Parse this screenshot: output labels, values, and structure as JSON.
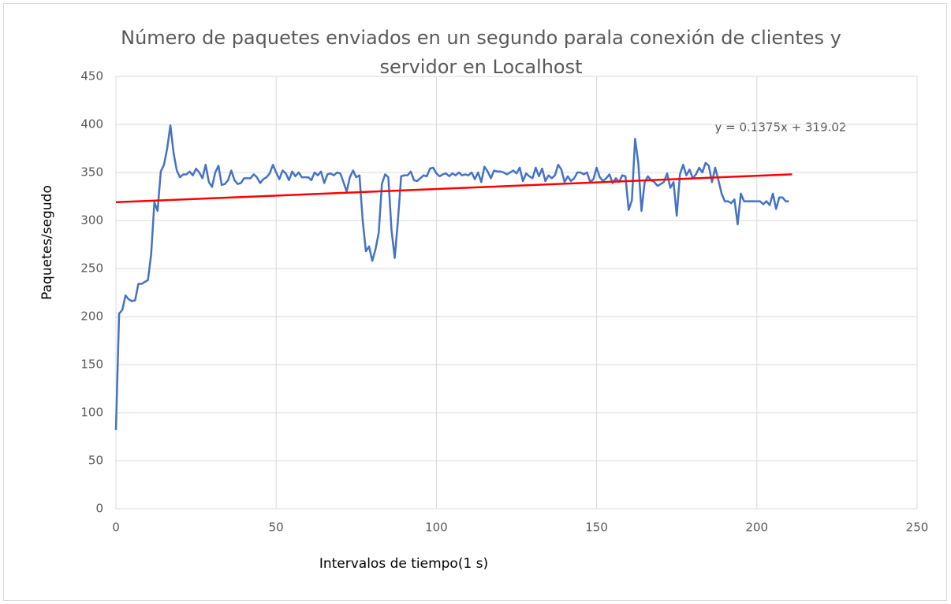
{
  "chart_data": {
    "type": "line",
    "title": [
      "Número de paquetes enviados en un segundo parala conexión de clientes y",
      "servidor en Localhost"
    ],
    "xlabel": "Intervalos de tiempo(1 s)",
    "ylabel": "Paquetes/segudo",
    "annotation": "y = 0.1375x + 319.02",
    "xlim": [
      0,
      250
    ],
    "xticks": [
      0,
      50,
      100,
      150,
      200,
      250
    ],
    "ylim": [
      0,
      450
    ],
    "yticks": [
      0,
      50,
      100,
      150,
      200,
      250,
      300,
      350,
      400,
      450
    ],
    "grid": true,
    "series": [
      {
        "color": "#4472c4",
        "x": [
          0,
          1,
          2,
          3,
          4,
          5,
          6,
          7,
          8,
          9,
          10,
          11,
          12,
          13,
          14,
          15,
          16,
          17,
          18,
          19,
          20,
          21,
          22,
          23,
          24,
          25,
          26,
          27,
          28,
          29,
          30,
          31,
          32,
          33,
          34,
          35,
          36,
          37,
          38,
          39,
          40,
          41,
          42,
          43,
          44,
          45,
          46,
          47,
          48,
          49,
          50,
          51,
          52,
          53,
          54,
          55,
          56,
          57,
          58,
          59,
          60,
          61,
          62,
          63,
          64,
          65,
          66,
          67,
          68,
          69,
          70,
          71,
          72,
          73,
          74,
          75,
          76,
          77,
          78,
          79,
          80,
          81,
          82,
          83,
          84,
          85,
          86,
          87,
          88,
          89,
          90,
          91,
          92,
          93,
          94,
          95,
          96,
          97,
          98,
          99,
          100,
          101,
          102,
          103,
          104,
          105,
          106,
          107,
          108,
          109,
          110,
          111,
          112,
          113,
          114,
          115,
          116,
          117,
          118,
          119,
          120,
          121,
          122,
          123,
          124,
          125,
          126,
          127,
          128,
          129,
          130,
          131,
          132,
          133,
          134,
          135,
          136,
          137,
          138,
          139,
          140,
          141,
          142,
          143,
          144,
          145,
          146,
          147,
          148,
          149,
          150,
          151,
          152,
          153,
          154,
          155,
          156,
          157,
          158,
          159,
          160,
          161,
          162,
          163,
          164,
          165,
          166,
          167,
          168,
          169,
          170,
          171,
          172,
          173,
          174,
          175,
          176,
          177,
          178,
          179,
          180,
          181,
          182,
          183,
          184,
          185,
          186,
          187,
          188,
          189,
          190,
          191,
          192,
          193,
          194,
          195,
          196,
          197,
          198,
          199,
          200,
          201,
          202,
          203,
          204,
          205,
          206,
          207,
          208,
          209,
          210
        ],
        "values": [
          82,
          203,
          207,
          222,
          218,
          216,
          217,
          234,
          234,
          236,
          238,
          265,
          319,
          310,
          351,
          358,
          375,
          399,
          370,
          352,
          345,
          348,
          348,
          351,
          347,
          354,
          350,
          344,
          358,
          340,
          335,
          350,
          357,
          337,
          338,
          342,
          352,
          342,
          338,
          339,
          344,
          344,
          344,
          348,
          345,
          339,
          343,
          345,
          349,
          358,
          350,
          343,
          352,
          349,
          342,
          351,
          346,
          350,
          345,
          345,
          345,
          342,
          350,
          347,
          351,
          339,
          348,
          349,
          347,
          350,
          349,
          340,
          330,
          345,
          352,
          345,
          347,
          300,
          268,
          273,
          258,
          270,
          287,
          338,
          348,
          345,
          290,
          261,
          300,
          346,
          347,
          347,
          351,
          342,
          341,
          344,
          347,
          346,
          354,
          355,
          349,
          346,
          348,
          349,
          346,
          349,
          347,
          350,
          347,
          348,
          347,
          350,
          343,
          350,
          340,
          356,
          351,
          344,
          352,
          351,
          351,
          350,
          348,
          350,
          352,
          349,
          355,
          341,
          349,
          346,
          344,
          355,
          346,
          354,
          341,
          347,
          344,
          347,
          358,
          353,
          340,
          346,
          341,
          344,
          350,
          350,
          348,
          350,
          340,
          343,
          355,
          345,
          341,
          344,
          348,
          339,
          344,
          340,
          347,
          346,
          311,
          321,
          385,
          360,
          310,
          340,
          346,
          342,
          340,
          336,
          338,
          340,
          349,
          334,
          340,
          305,
          348,
          358,
          347,
          353,
          344,
          348,
          355,
          350,
          360,
          357,
          340,
          355,
          342,
          328,
          320,
          320,
          318,
          322,
          296,
          328,
          320,
          320,
          320,
          320,
          320,
          320,
          317,
          320,
          316,
          328,
          312,
          324,
          324,
          320,
          320
        ]
      }
    ],
    "trendline": {
      "color": "#ff0000",
      "x": [
        0,
        211
      ],
      "values": [
        319.02,
        348.03
      ]
    }
  }
}
